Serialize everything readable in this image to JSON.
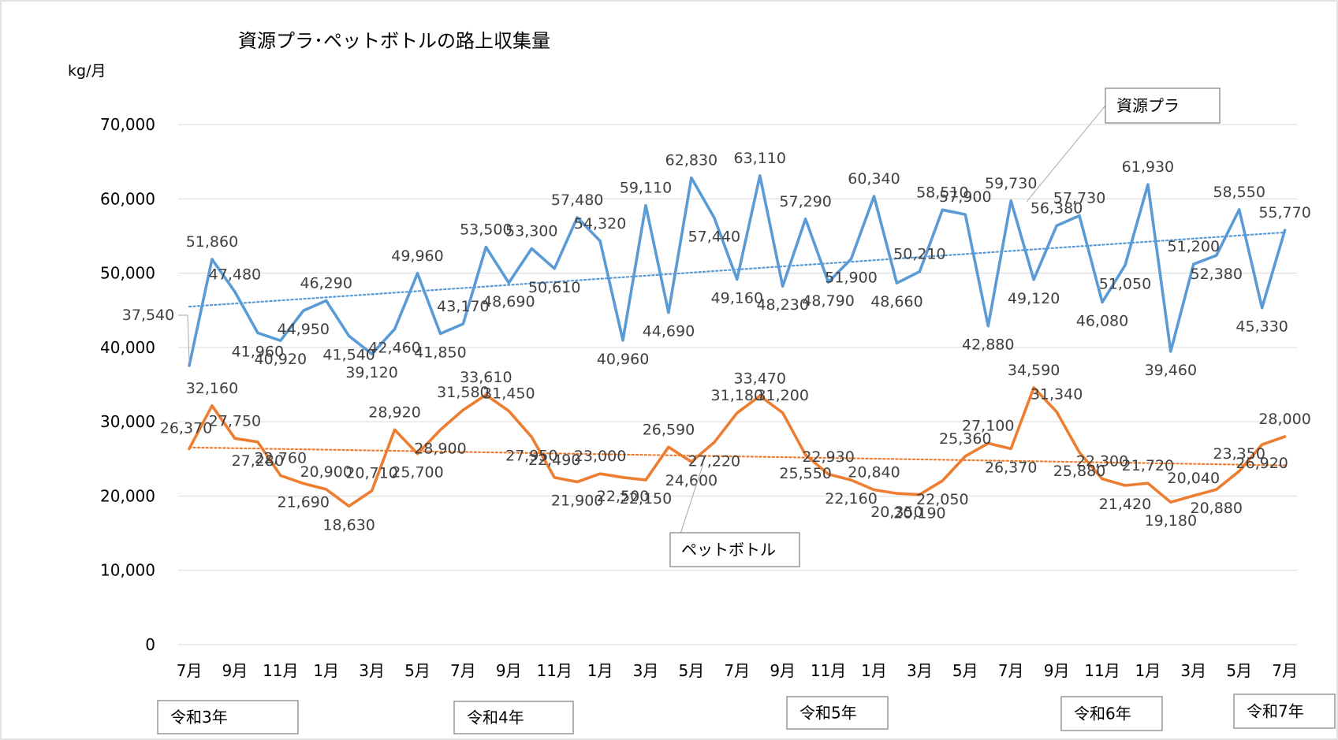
{
  "chart_data": {
    "type": "line",
    "title": "資源プラ･ペットボトルの路上収集量",
    "unit_label": "kg/月",
    "ylim": [
      0,
      70000
    ],
    "yticks": [
      "0",
      "10,000",
      "20,000",
      "30,000",
      "40,000",
      "50,000",
      "60,000",
      "70,000"
    ],
    "x": [
      "7月",
      "8月",
      "9月",
      "10月",
      "11月",
      "12月",
      "1月",
      "2月",
      "3月",
      "4月",
      "5月",
      "6月",
      "7月",
      "8月",
      "9月",
      "10月",
      "11月",
      "12月",
      "1月",
      "2月",
      "3月",
      "4月",
      "5月",
      "6月",
      "7月",
      "8月",
      "9月",
      "10月",
      "11月",
      "12月",
      "1月",
      "2月",
      "3月",
      "4月",
      "5月",
      "6月",
      "7月",
      "8月",
      "9月",
      "10月",
      "11月",
      "12月",
      "1月",
      "2月",
      "3月",
      "4月",
      "5月",
      "6月",
      "7月"
    ],
    "x_tick_labels": [
      "7月",
      "9月",
      "11月",
      "1月",
      "3月",
      "5月",
      "7月",
      "9月",
      "11月",
      "1月",
      "3月",
      "5月",
      "7月",
      "9月",
      "11月",
      "1月",
      "3月",
      "5月",
      "7月",
      "9月",
      "11月",
      "1月",
      "3月",
      "5月",
      "7月"
    ],
    "year_labels": [
      "令和3年",
      "令和4年",
      "令和5年",
      "令和6年",
      "令和7年"
    ],
    "series": [
      {
        "name": "資源プラ",
        "color": "#5b9bd5",
        "trendline": "linear",
        "values": [
          37540,
          51860,
          47480,
          41960,
          40920,
          44950,
          46290,
          41540,
          39120,
          42460,
          49960,
          41850,
          43170,
          53500,
          48690,
          53300,
          50610,
          57480,
          54320,
          40960,
          59110,
          44690,
          62830,
          57440,
          49160,
          63110,
          48230,
          57290,
          48790,
          51900,
          60340,
          48660,
          50210,
          58510,
          57900,
          42880,
          59730,
          49120,
          56380,
          57730,
          46080,
          51050,
          61930,
          39460,
          51200,
          52380,
          58550,
          45330,
          55770
        ],
        "labels": [
          "37,540",
          "51,860",
          "47,480",
          "41,960",
          "40,920",
          "44,950",
          "46,290",
          "41,540",
          "39,120",
          "42,460",
          "49,960",
          "41,850",
          "43,170",
          "53,500",
          "48,690",
          "53,300",
          "50,610",
          "57,480",
          "54,320",
          "40,960",
          "59,110",
          "44,690",
          "62,830",
          "57,440",
          "49,160",
          "63,110",
          "48,230",
          "57,290",
          "48,790",
          "51,900",
          "60,340",
          "48,660",
          "50,210",
          "58,510",
          "57,900",
          "42,880",
          "59,730",
          "49,120",
          "56,380",
          "57,730",
          "46,080",
          "51,050",
          "61,930",
          "39,460",
          "51,200",
          "52,380",
          "58,550",
          "45,330",
          "55,770"
        ]
      },
      {
        "name": "ペットボトル",
        "color": "#ed7d31",
        "trendline": "linear",
        "values": [
          26370,
          32160,
          27750,
          27280,
          22760,
          21690,
          20900,
          18630,
          20710,
          28920,
          25700,
          28900,
          31580,
          33610,
          31450,
          27950,
          22490,
          21900,
          23000,
          22500,
          22150,
          26590,
          24600,
          27220,
          31180,
          33470,
          31200,
          25550,
          22930,
          22160,
          20840,
          20350,
          20190,
          22050,
          25360,
          27100,
          26370,
          34590,
          31340,
          25880,
          22300,
          21420,
          21720,
          19180,
          20040,
          20880,
          23350,
          26920,
          28000
        ],
        "labels": [
          "26,370",
          "32,160",
          "27,750",
          "27,280",
          "22,760",
          "21,690",
          "20,900",
          "18,630",
          "20,710",
          "28,920",
          "25,700",
          "28,900",
          "31,580",
          "33,610",
          "31,450",
          "27,950",
          "22,490",
          "21,900",
          "23,000",
          "22,500",
          "22,150",
          "26,590",
          "24,600",
          "27,220",
          "31,180",
          "33,470",
          "31,200",
          "25,550",
          "22,930",
          "22,160",
          "20,840",
          "20,350",
          "20,190",
          "22,050",
          "25,360",
          "27,100",
          "26,370",
          "34,590",
          "31,340",
          "25,880",
          "22,300",
          "21,420",
          "21,720",
          "19,180",
          "20,040",
          "20,880",
          "23,350",
          "26,920",
          "28,000"
        ]
      }
    ],
    "grid": "horizontal",
    "legend": "callout boxes"
  }
}
